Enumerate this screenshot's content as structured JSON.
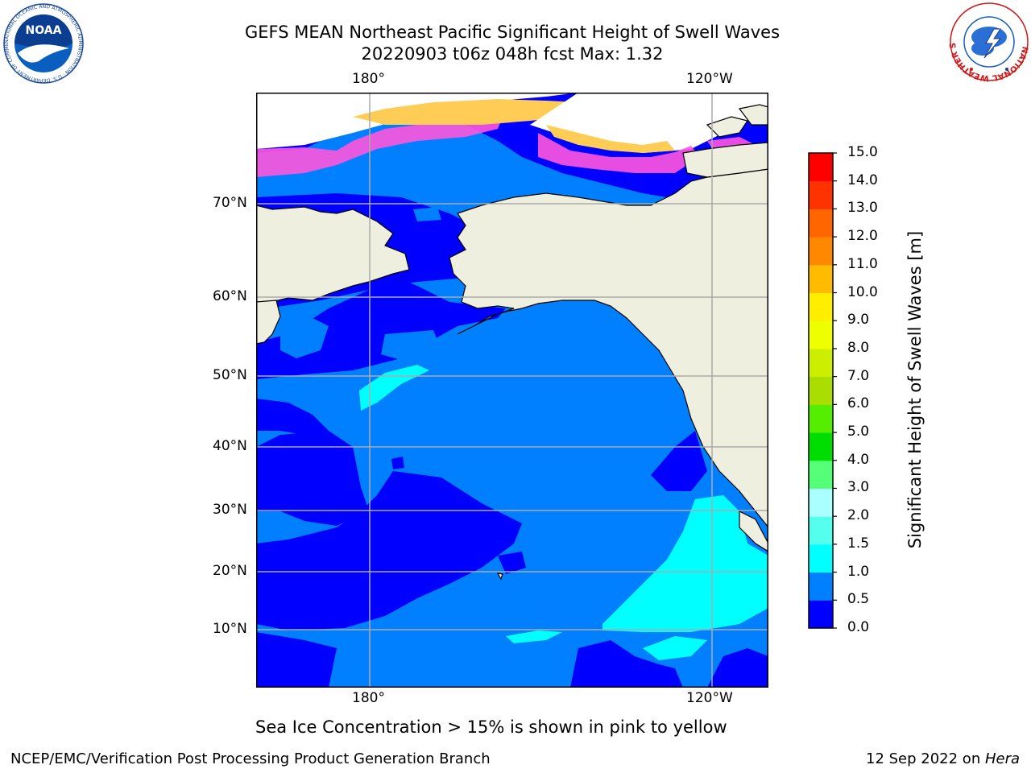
{
  "title": {
    "line1": "GEFS MEAN Northeast Pacific Significant Height of Swell Waves",
    "line2": "20220903 t06z 048h fcst   Max: 1.32"
  },
  "map": {
    "lon_labels_top": [
      "180°",
      "120°W"
    ],
    "lon_labels_bottom": [
      "180°",
      "120°W"
    ],
    "lat_labels": [
      "70°N",
      "60°N",
      "50°N",
      "40°N",
      "30°N",
      "20°N",
      "10°N"
    ],
    "colors": {
      "land": "#efefdf",
      "ocean_low": "#0000ff",
      "ocean_mid": "#0080ff",
      "ocean_high": "#00ffff",
      "ice_pink": "#ff55dd",
      "ice_yellow": "#ffcc55",
      "gridline": "#aaaaaa"
    }
  },
  "colorbar": {
    "label": "Significant Height of Swell Waves [m]",
    "ticks": [
      "15.0",
      "14.0",
      "13.0",
      "12.0",
      "11.0",
      "10.0",
      "9.0",
      "8.0",
      "7.0",
      "6.0",
      "5.0",
      "4.0",
      "3.0",
      "2.0",
      "1.5",
      "1.0",
      "0.5",
      "0.0"
    ],
    "colors_bottom_to_top": [
      "#0000ff",
      "#0080ff",
      "#00ffff",
      "#55ffee",
      "#aaffff",
      "#55ff77",
      "#00dd00",
      "#55ee00",
      "#aadd00",
      "#ccee00",
      "#eeff00",
      "#ffee00",
      "#ffbb00",
      "#ff8800",
      "#ff6600",
      "#ff3300",
      "#ff0000"
    ]
  },
  "caption": "Sea Ice Concentration > 15% is shown in pink to yellow",
  "footer": {
    "left": "NCEP/EMC/Verification Post Processing Product Generation Branch",
    "right_prefix": "12 Sep 2022 on ",
    "right_host": "Hera"
  },
  "logos": {
    "noaa": "NOAA",
    "noaa_ring": "NATIONAL OCEANIC AND ATMOSPHERIC ADMINISTRATION · U.S. DEPARTMENT OF COMMERCE",
    "nws_ring": "NATIONAL WEATHER SERVICE"
  }
}
